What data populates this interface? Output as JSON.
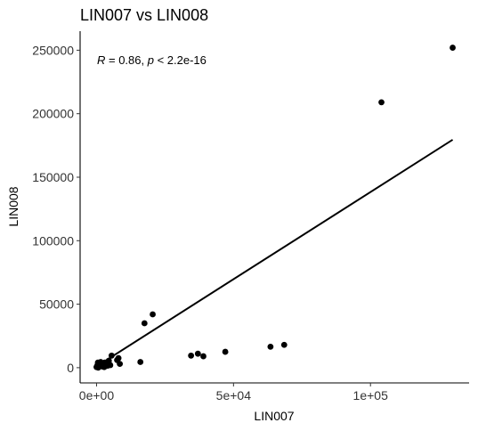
{
  "chart_data": {
    "type": "scatter",
    "title": "LIN007 vs LIN008",
    "xlabel": "LIN007",
    "ylabel": "LIN008",
    "xlim": [
      -6000,
      136000
    ],
    "ylim": [
      -12000,
      265000
    ],
    "x_ticks": [
      {
        "value": 0,
        "label": "0e+00"
      },
      {
        "value": 50000,
        "label": "5e+04"
      },
      {
        "value": 100000,
        "label": "1e+05"
      }
    ],
    "y_ticks": [
      {
        "value": 0,
        "label": "0"
      },
      {
        "value": 50000,
        "label": "50000"
      },
      {
        "value": 100000,
        "label": "100000"
      },
      {
        "value": 150000,
        "label": "150000"
      },
      {
        "value": 200000,
        "label": "200000"
      },
      {
        "value": 250000,
        "label": "250000"
      }
    ],
    "annotation": {
      "r_label": "R",
      "r_value": " = 0.86, ",
      "p_label": "p",
      "p_value": " < 2.2e-16"
    },
    "grid": false,
    "points": [
      {
        "x": 130000,
        "y": 252000
      },
      {
        "x": 104000,
        "y": 209000
      },
      {
        "x": 20500,
        "y": 42000
      },
      {
        "x": 17500,
        "y": 35000
      },
      {
        "x": 68500,
        "y": 18000
      },
      {
        "x": 63500,
        "y": 16500
      },
      {
        "x": 47000,
        "y": 12500
      },
      {
        "x": 37000,
        "y": 11000
      },
      {
        "x": 34500,
        "y": 9500
      },
      {
        "x": 39000,
        "y": 9000
      },
      {
        "x": 16000,
        "y": 4500
      },
      {
        "x": 5500,
        "y": 9500
      },
      {
        "x": 8000,
        "y": 7500
      },
      {
        "x": 7500,
        "y": 6000
      },
      {
        "x": 8500,
        "y": 3000
      },
      {
        "x": 4500,
        "y": 5500
      },
      {
        "x": 5000,
        "y": 2000
      },
      {
        "x": 3000,
        "y": 4000
      },
      {
        "x": 4000,
        "y": 1500
      },
      {
        "x": 2500,
        "y": 3000
      },
      {
        "x": 1500,
        "y": 4500
      },
      {
        "x": 500,
        "y": 4000
      },
      {
        "x": 1000,
        "y": 2000
      },
      {
        "x": 2000,
        "y": 1000
      },
      {
        "x": 0,
        "y": 500
      },
      {
        "x": 300,
        "y": 1800
      },
      {
        "x": 1200,
        "y": 3200
      },
      {
        "x": 2800,
        "y": 500
      },
      {
        "x": 600,
        "y": 0
      },
      {
        "x": 1800,
        "y": 2500
      }
    ],
    "fit_line": {
      "x": [
        0,
        130000
      ],
      "y": [
        1000,
        179500
      ]
    }
  }
}
